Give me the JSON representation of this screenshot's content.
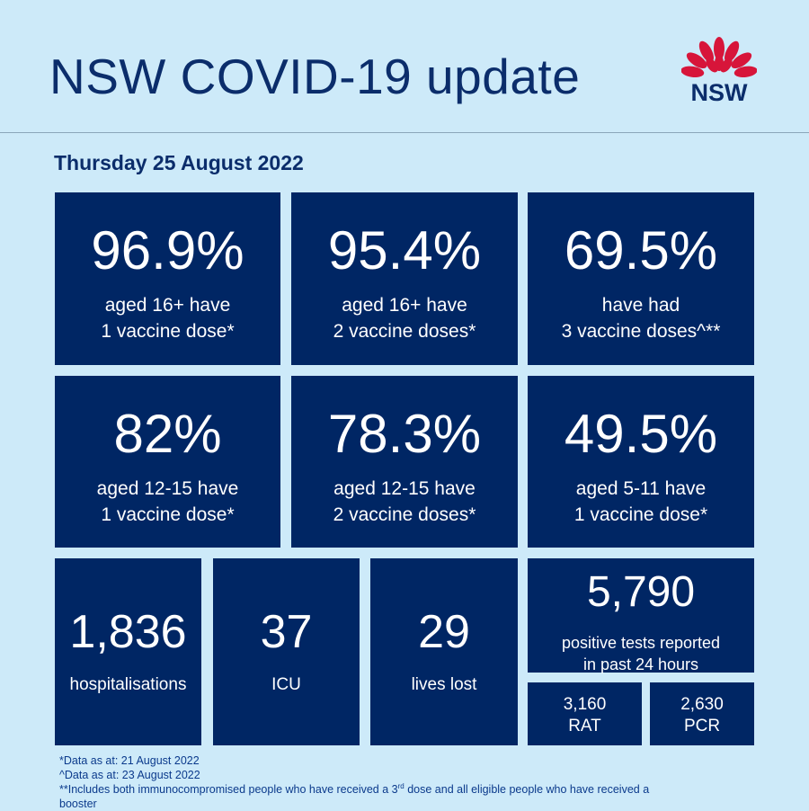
{
  "header": {
    "title": "NSW COVID-19 update",
    "logo_text": "NSW",
    "logo_color": "#d7153a"
  },
  "date": "Thursday 25 August 2022",
  "colors": {
    "background": "#cdeaf9",
    "card": "#002664",
    "title": "#0b2d6b"
  },
  "vaccination": [
    {
      "value": "96.9%",
      "line1": "aged 16+ have",
      "line2": "1 vaccine dose*"
    },
    {
      "value": "95.4%",
      "line1": "aged 16+ have",
      "line2": "2 vaccine doses*"
    },
    {
      "value": "69.5%",
      "line1": "have had",
      "line2": "3 vaccine doses^**"
    },
    {
      "value": "82%",
      "line1": "aged 12-15 have",
      "line2": "1 vaccine dose*"
    },
    {
      "value": "78.3%",
      "line1": "aged 12-15 have",
      "line2": "2 vaccine doses*"
    },
    {
      "value": "49.5%",
      "line1": "aged 5-11 have",
      "line2": "1 vaccine dose*"
    }
  ],
  "stats": {
    "hospitalisations": {
      "value": "1,836",
      "label": "hospitalisations"
    },
    "icu": {
      "value": "37",
      "label": "ICU"
    },
    "deaths": {
      "value": "29",
      "label": "lives lost"
    },
    "positive": {
      "value": "5,790",
      "line1": "positive tests reported",
      "line2": "in past 24 hours"
    },
    "rat": {
      "value": "3,160",
      "label": "RAT"
    },
    "pcr": {
      "value": "2,630",
      "label": "PCR"
    }
  },
  "footnotes": {
    "note1": "*Data as at: 21 August 2022",
    "note2": "^Data as at: 23 August 2022",
    "note3_a": "**Includes both immunocompromised people who have received a 3",
    "note3_sup": "rd",
    "note3_b": " dose and all eligible people who have received a",
    "note3_c": "booster"
  }
}
